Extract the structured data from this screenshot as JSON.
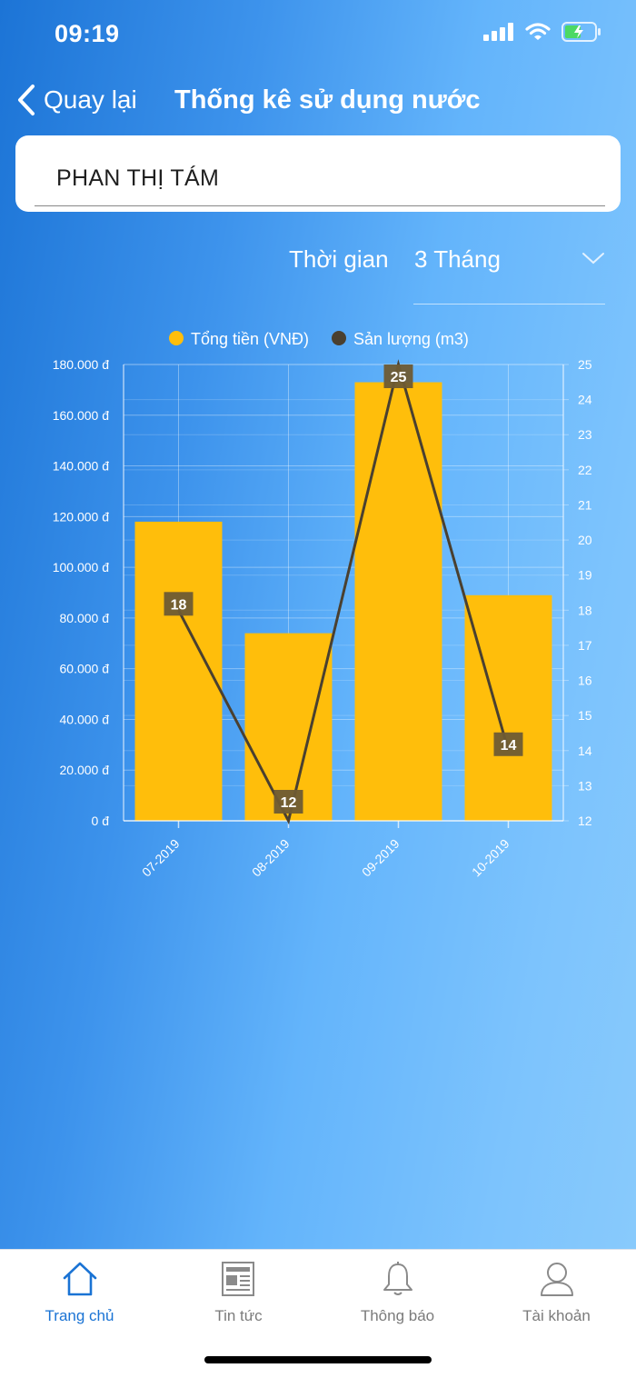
{
  "status_bar": {
    "time": "09:19"
  },
  "nav": {
    "back_label": "Quay lại",
    "title": "Thống kê sử dụng nước"
  },
  "customer": {
    "name": "PHAN THỊ TÁM"
  },
  "period": {
    "label": "Thời gian",
    "value": "3 Tháng"
  },
  "chart_data": {
    "type": "bar",
    "categories": [
      "07-2019",
      "08-2019",
      "09-2019",
      "10-2019"
    ],
    "series": [
      {
        "name": "Tổng tiền (VNĐ)",
        "type": "bar",
        "axis": "left",
        "values": [
          118000,
          74000,
          173000,
          89000
        ]
      },
      {
        "name": "Sản lượng (m3)",
        "type": "line",
        "axis": "right",
        "values": [
          18,
          12,
          25,
          14
        ]
      }
    ],
    "y_left": {
      "min": 0,
      "max": 180000,
      "ticks": [
        "0 đ",
        "20.000 đ",
        "40.000 đ",
        "60.000 đ",
        "80.000 đ",
        "100.000 đ",
        "120.000 đ",
        "140.000 đ",
        "160.000 đ",
        "180.000 đ"
      ]
    },
    "y_right": {
      "min": 12,
      "max": 25,
      "ticks": [
        "12",
        "13",
        "14",
        "15",
        "16",
        "17",
        "18",
        "19",
        "20",
        "21",
        "22",
        "23",
        "24",
        "25"
      ]
    },
    "legend_position": "top-center",
    "grid": true
  },
  "colors": {
    "bar": "#ffbe0b",
    "line": "#4a4030",
    "label_bg": "#6e5b34",
    "active_tab": "#1a73d4",
    "inactive_tab": "#7b7b7b"
  },
  "tabs": [
    {
      "label": "Trang chủ",
      "icon": "home-icon",
      "active": true
    },
    {
      "label": "Tin tức",
      "icon": "newspaper-icon",
      "active": false
    },
    {
      "label": "Thông báo",
      "icon": "bell-icon",
      "active": false
    },
    {
      "label": "Tài khoản",
      "icon": "user-icon",
      "active": false
    }
  ]
}
